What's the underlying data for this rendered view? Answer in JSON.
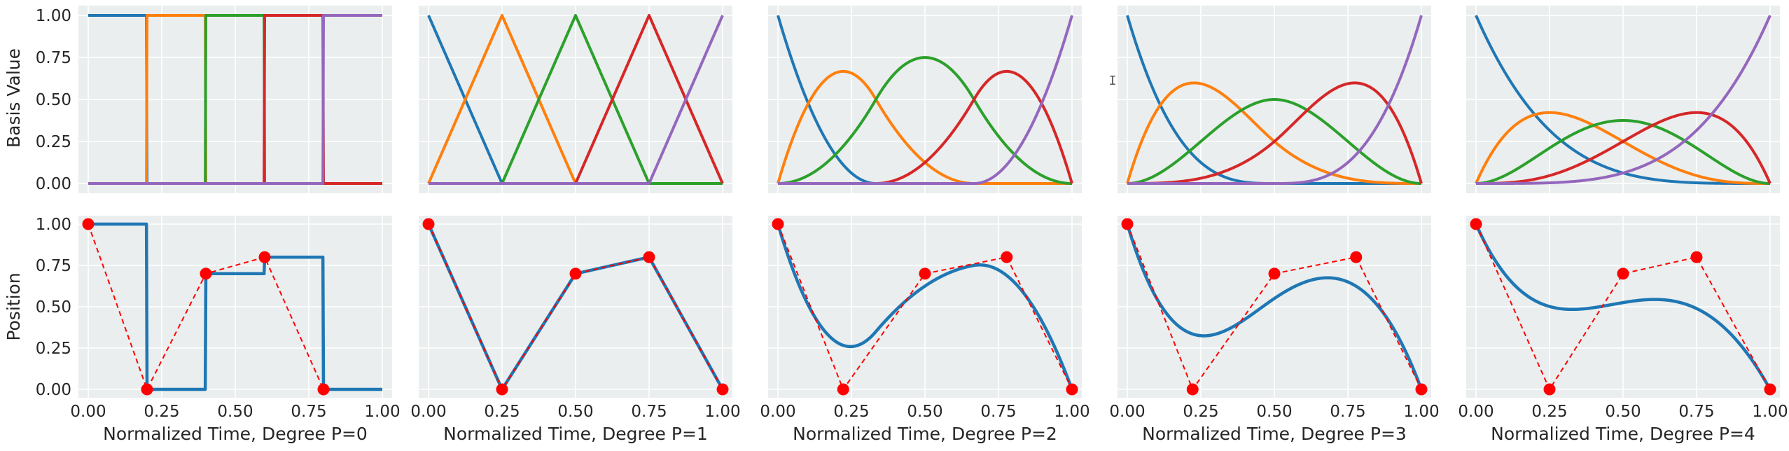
{
  "colors": {
    "panel_bg": "#EAEEEE",
    "grid": "#FFFFFF",
    "curve": "#1F77B4",
    "control_points": "#FF0000",
    "basis": [
      "#1F77B4",
      "#FF7F0E",
      "#2CA02C",
      "#D62728",
      "#9467BD"
    ]
  },
  "labels": {
    "top_ylabel": "Basis Value",
    "bottom_ylabel": "Position"
  },
  "chart_data": [
    {
      "type": "line",
      "row": "basis",
      "degree": 0,
      "xlabel": "",
      "ylabel": "Basis Value",
      "xlim": [
        0,
        1
      ],
      "ylim": [
        0,
        1
      ],
      "yticks": [
        "0.00",
        "0.25",
        "0.50",
        "0.75",
        "1.00"
      ],
      "knots_interior": [
        0.2,
        0.4,
        0.6,
        0.8
      ],
      "series_count": 5
    },
    {
      "type": "line",
      "row": "basis",
      "degree": 1,
      "xlabel": "",
      "ylabel": "",
      "xlim": [
        0,
        1
      ],
      "ylim": [
        0,
        1
      ],
      "knots_interior": [
        0.25,
        0.5,
        0.75
      ],
      "series_count": 5
    },
    {
      "type": "line",
      "row": "basis",
      "degree": 2,
      "xlabel": "",
      "ylabel": "",
      "xlim": [
        0,
        1
      ],
      "ylim": [
        0,
        1
      ],
      "knots_interior": [
        0.333,
        0.667
      ],
      "series_count": 5
    },
    {
      "type": "line",
      "row": "basis",
      "degree": 3,
      "xlabel": "",
      "ylabel": "",
      "xlim": [
        0,
        1
      ],
      "ylim": [
        0,
        1
      ],
      "knots_interior": [
        0.5
      ],
      "series_count": 5
    },
    {
      "type": "line",
      "row": "basis",
      "degree": 4,
      "xlabel": "",
      "ylabel": "",
      "xlim": [
        0,
        1
      ],
      "ylim": [
        0,
        1
      ],
      "knots_interior": [],
      "series_count": 5
    },
    {
      "type": "line",
      "row": "trajectory",
      "degree": 0,
      "xlabel": "Normalized Time, Degree P=0",
      "ylabel": "Position",
      "xlim": [
        0,
        1
      ],
      "ylim": [
        0,
        1
      ],
      "xticks": [
        "0.00",
        "0.25",
        "0.50",
        "0.75",
        "1.00"
      ],
      "yticks": [
        "0.00",
        "0.25",
        "0.50",
        "0.75",
        "1.00"
      ],
      "control_points": {
        "x": [
          0.0,
          0.2,
          0.4,
          0.6,
          0.8
        ],
        "y": [
          1.0,
          0.0,
          0.7,
          0.8,
          0.0
        ]
      },
      "knots_interior": [
        0.2,
        0.4,
        0.6,
        0.8
      ]
    },
    {
      "type": "line",
      "row": "trajectory",
      "degree": 1,
      "xlabel": "Normalized Time, Degree P=1",
      "ylabel": "",
      "xlim": [
        0,
        1
      ],
      "ylim": [
        0,
        1
      ],
      "xticks": [
        "0.00",
        "0.25",
        "0.50",
        "0.75",
        "1.00"
      ],
      "control_points": {
        "x": [
          0.0,
          0.25,
          0.5,
          0.75,
          1.0
        ],
        "y": [
          1.0,
          0.0,
          0.7,
          0.8,
          0.0
        ]
      },
      "knots_interior": [
        0.25,
        0.5,
        0.75
      ]
    },
    {
      "type": "line",
      "row": "trajectory",
      "degree": 2,
      "xlabel": "Normalized Time, Degree P=2",
      "ylabel": "",
      "xlim": [
        0,
        1
      ],
      "ylim": [
        0,
        1
      ],
      "xticks": [
        "0.00",
        "0.25",
        "0.50",
        "0.75",
        "1.00"
      ],
      "control_points": {
        "x": [
          0.0,
          0.222,
          0.5,
          0.778,
          1.0
        ],
        "y": [
          1.0,
          0.0,
          0.7,
          0.8,
          0.0
        ]
      },
      "knots_interior": [
        0.333,
        0.667
      ]
    },
    {
      "type": "line",
      "row": "trajectory",
      "degree": 3,
      "xlabel": "Normalized Time, Degree P=3",
      "ylabel": "",
      "xlim": [
        0,
        1
      ],
      "ylim": [
        0,
        1
      ],
      "xticks": [
        "0.00",
        "0.25",
        "0.50",
        "0.75",
        "1.00"
      ],
      "control_points": {
        "x": [
          0.0,
          0.222,
          0.5,
          0.778,
          1.0
        ],
        "y": [
          1.0,
          0.0,
          0.7,
          0.8,
          0.0
        ]
      },
      "knots_interior": [
        0.5
      ]
    },
    {
      "type": "line",
      "row": "trajectory",
      "degree": 4,
      "xlabel": "Normalized Time, Degree P=4",
      "ylabel": "",
      "xlim": [
        0,
        1
      ],
      "ylim": [
        0,
        1
      ],
      "xticks": [
        "0.00",
        "0.25",
        "0.50",
        "0.75",
        "1.00"
      ],
      "control_points": {
        "x": [
          0.0,
          0.25,
          0.5,
          0.75,
          1.0
        ],
        "y": [
          1.0,
          0.0,
          0.7,
          0.8,
          0.0
        ]
      },
      "knots_interior": []
    }
  ]
}
